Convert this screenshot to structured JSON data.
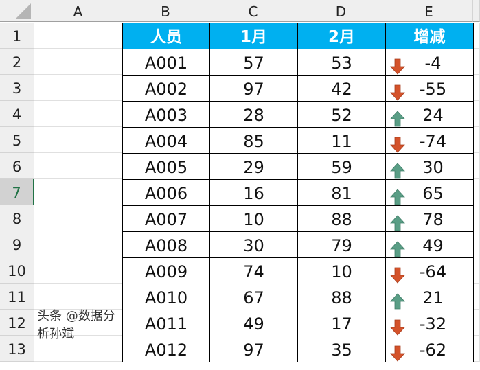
{
  "columns": [
    "A",
    "B",
    "C",
    "D",
    "E"
  ],
  "rows": [
    "1",
    "2",
    "3",
    "4",
    "5",
    "6",
    "7",
    "8",
    "9",
    "10",
    "11",
    "12",
    "13"
  ],
  "selected_row": "7",
  "header": {
    "person": "人员",
    "jan": "1月",
    "feb": "2月",
    "change": "增减"
  },
  "colors": {
    "header_bg": "#00b0f0",
    "up_arrow": "#5a9e86",
    "down_arrow": "#d4522a"
  },
  "data": [
    {
      "id": "A001",
      "jan": "57",
      "feb": "53",
      "change": "-4",
      "icon": "arrow-down"
    },
    {
      "id": "A002",
      "jan": "97",
      "feb": "42",
      "change": "-55",
      "icon": "arrow-down"
    },
    {
      "id": "A003",
      "jan": "28",
      "feb": "52",
      "change": "24",
      "icon": "arrow-up"
    },
    {
      "id": "A004",
      "jan": "85",
      "feb": "11",
      "change": "-74",
      "icon": "arrow-down"
    },
    {
      "id": "A005",
      "jan": "29",
      "feb": "59",
      "change": "30",
      "icon": "arrow-up"
    },
    {
      "id": "A006",
      "jan": "16",
      "feb": "81",
      "change": "65",
      "icon": "arrow-up"
    },
    {
      "id": "A007",
      "jan": "10",
      "feb": "88",
      "change": "78",
      "icon": "arrow-up"
    },
    {
      "id": "A008",
      "jan": "30",
      "feb": "79",
      "change": "49",
      "icon": "arrow-up"
    },
    {
      "id": "A009",
      "jan": "74",
      "feb": "10",
      "change": "-64",
      "icon": "arrow-down"
    },
    {
      "id": "A010",
      "jan": "67",
      "feb": "88",
      "change": "21",
      "icon": "arrow-up"
    },
    {
      "id": "A011",
      "jan": "49",
      "feb": "17",
      "change": "-32",
      "icon": "arrow-down"
    },
    {
      "id": "A012",
      "jan": "97",
      "feb": "35",
      "change": "-62",
      "icon": "arrow-down"
    }
  ],
  "watermark": "头条 @数据分析孙斌"
}
